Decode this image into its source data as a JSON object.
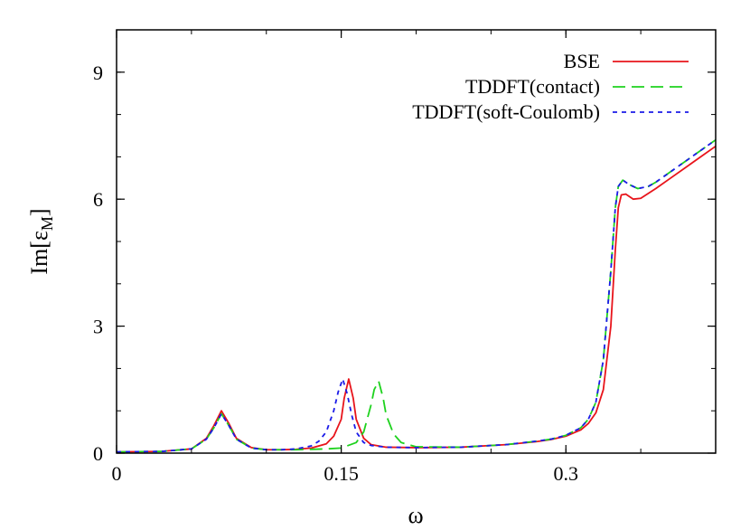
{
  "chart_data": {
    "type": "line",
    "title": "",
    "xlabel": "ω",
    "ylabel": {
      "main": "Im[ε",
      "subscript": "M",
      "close": "]"
    },
    "xlim": [
      0,
      0.4
    ],
    "ylim": [
      0,
      10
    ],
    "xticks": [
      {
        "value": 0,
        "label": "0"
      },
      {
        "value": 0.15,
        "label": "0.15"
      },
      {
        "value": 0.3,
        "label": "0.3"
      }
    ],
    "yticks": [
      {
        "value": 0,
        "label": "0"
      },
      {
        "value": 3,
        "label": "3"
      },
      {
        "value": 6,
        "label": "6"
      },
      {
        "value": 9,
        "label": "9"
      }
    ],
    "minor_xtick_step": 0.05,
    "minor_ytick_step": 1,
    "grid": false,
    "legend_position": "top-right",
    "series": [
      {
        "name": "BSE",
        "color": "#e8141b",
        "dash": "solid",
        "x": [
          0,
          0.03,
          0.05,
          0.06,
          0.065,
          0.07,
          0.075,
          0.08,
          0.09,
          0.1,
          0.11,
          0.12,
          0.13,
          0.14,
          0.145,
          0.15,
          0.152,
          0.155,
          0.158,
          0.16,
          0.165,
          0.17,
          0.18,
          0.2,
          0.23,
          0.26,
          0.28,
          0.29,
          0.3,
          0.31,
          0.315,
          0.32,
          0.325,
          0.33,
          0.333,
          0.335,
          0.337,
          0.34,
          0.345,
          0.35,
          0.36,
          0.37,
          0.38,
          0.39,
          0.4
        ],
        "y": [
          0.03,
          0.04,
          0.1,
          0.35,
          0.65,
          1.0,
          0.7,
          0.35,
          0.13,
          0.08,
          0.08,
          0.09,
          0.12,
          0.22,
          0.4,
          0.8,
          1.3,
          1.75,
          1.3,
          0.8,
          0.35,
          0.2,
          0.14,
          0.13,
          0.14,
          0.2,
          0.27,
          0.32,
          0.4,
          0.55,
          0.7,
          0.95,
          1.5,
          3.0,
          4.8,
          5.8,
          6.1,
          6.12,
          6.0,
          6.02,
          6.25,
          6.5,
          6.75,
          7.0,
          7.25
        ]
      },
      {
        "name": "TDDFT(contact)",
        "color": "#1ed21e",
        "dash": "long",
        "x": [
          0,
          0.03,
          0.05,
          0.06,
          0.065,
          0.07,
          0.075,
          0.08,
          0.09,
          0.1,
          0.11,
          0.12,
          0.13,
          0.14,
          0.15,
          0.16,
          0.165,
          0.17,
          0.172,
          0.175,
          0.178,
          0.18,
          0.185,
          0.19,
          0.2,
          0.23,
          0.26,
          0.28,
          0.29,
          0.3,
          0.31,
          0.315,
          0.32,
          0.325,
          0.33,
          0.333,
          0.335,
          0.338,
          0.342,
          0.348,
          0.355,
          0.36,
          0.37,
          0.38,
          0.39,
          0.4
        ],
        "y": [
          0.03,
          0.04,
          0.1,
          0.33,
          0.6,
          0.93,
          0.65,
          0.33,
          0.12,
          0.08,
          0.08,
          0.08,
          0.09,
          0.1,
          0.12,
          0.25,
          0.5,
          1.15,
          1.5,
          1.7,
          1.3,
          0.9,
          0.45,
          0.25,
          0.15,
          0.14,
          0.2,
          0.28,
          0.33,
          0.42,
          0.6,
          0.8,
          1.2,
          2.2,
          4.3,
          5.8,
          6.3,
          6.45,
          6.35,
          6.25,
          6.3,
          6.4,
          6.65,
          6.9,
          7.15,
          7.4
        ]
      },
      {
        "name": "TDDFT(soft-Coulomb)",
        "color": "#1b1be8",
        "dash": "short",
        "x": [
          0,
          0.03,
          0.05,
          0.06,
          0.065,
          0.07,
          0.075,
          0.08,
          0.09,
          0.1,
          0.11,
          0.12,
          0.13,
          0.135,
          0.14,
          0.145,
          0.148,
          0.151,
          0.154,
          0.157,
          0.16,
          0.165,
          0.17,
          0.18,
          0.2,
          0.23,
          0.26,
          0.28,
          0.29,
          0.3,
          0.31,
          0.315,
          0.32,
          0.325,
          0.33,
          0.333,
          0.335,
          0.338,
          0.342,
          0.348,
          0.355,
          0.36,
          0.37,
          0.38,
          0.39,
          0.4
        ],
        "y": [
          0.03,
          0.04,
          0.1,
          0.33,
          0.6,
          0.93,
          0.65,
          0.33,
          0.12,
          0.08,
          0.08,
          0.1,
          0.17,
          0.28,
          0.5,
          1.0,
          1.45,
          1.75,
          1.4,
          0.9,
          0.5,
          0.25,
          0.18,
          0.14,
          0.13,
          0.14,
          0.2,
          0.28,
          0.33,
          0.42,
          0.6,
          0.8,
          1.2,
          2.2,
          4.3,
          5.8,
          6.3,
          6.45,
          6.35,
          6.25,
          6.3,
          6.4,
          6.65,
          6.9,
          7.15,
          7.4
        ]
      }
    ]
  }
}
